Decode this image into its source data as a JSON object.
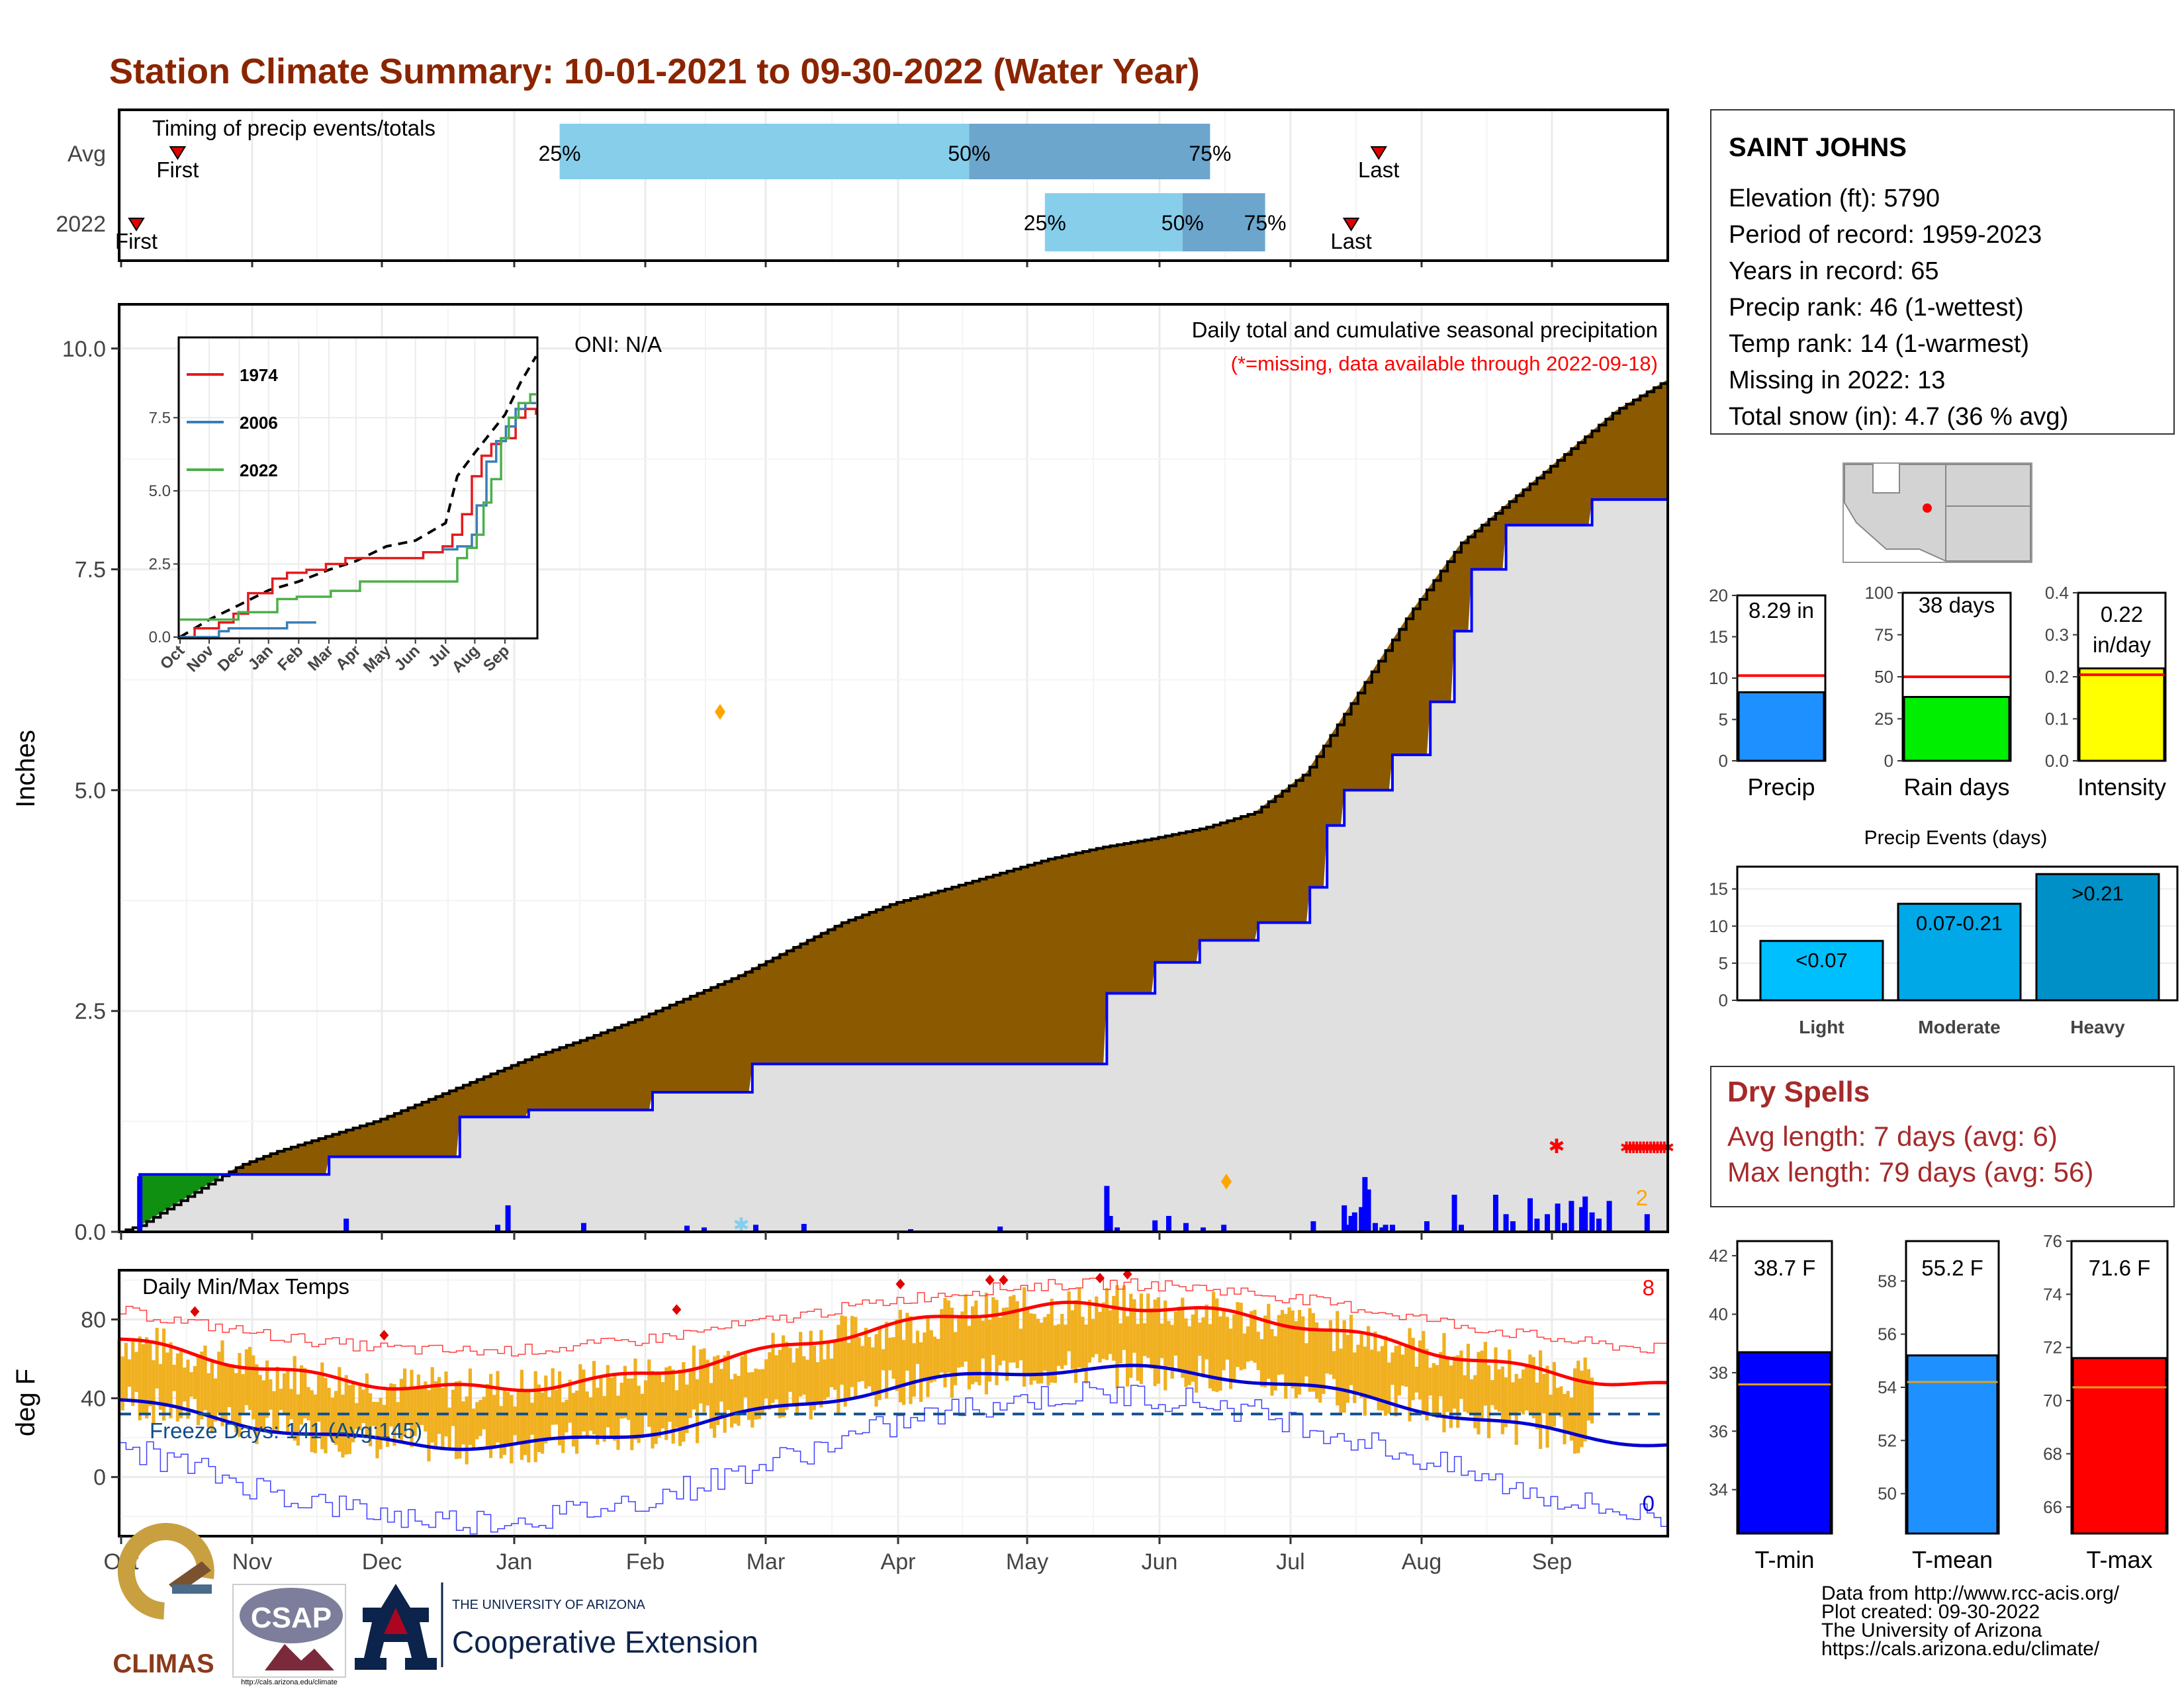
{
  "title": "Station Climate Summary: 10-01-2021 to 09-30-2022 (Water Year)",
  "months": [
    "Oct",
    "Nov",
    "Dec",
    "Jan",
    "Feb",
    "Mar",
    "Apr",
    "May",
    "Jun",
    "Jul",
    "Aug",
    "Sep"
  ],
  "timing": {
    "title": "Timing of precip events/totals",
    "rows": [
      "Avg",
      "2022"
    ],
    "avg": {
      "first": "First",
      "last": "Last",
      "first_day": 17,
      "last_day": 366,
      "p25_day": 128,
      "p50_day": 247,
      "p75_day": 317,
      "p25": "25%",
      "p50": "50%",
      "p75": "75%"
    },
    "y2022": {
      "first": "First",
      "last": "Last",
      "first_day": 5,
      "last_day": 358,
      "p25_day": 269,
      "p50_day": 309,
      "p75_day": 333,
      "p25": "25%",
      "p50": "50%",
      "p75": "75%"
    }
  },
  "precip": {
    "ylabel": "Inches",
    "yticks": [
      "0.0",
      "2.5",
      "5.0",
      "7.5",
      "10.0"
    ],
    "subtitle": "Daily total and cumulative seasonal precipitation",
    "missing_note": "(*=missing, data available through 2022-09-18)",
    "oni": "ONI: N/A",
    "missing_count": "2",
    "ylim": [
      0,
      10.5
    ],
    "cumulative_avg": [
      [
        0,
        0
      ],
      [
        6,
        0.07
      ],
      [
        20,
        0.4
      ],
      [
        35,
        0.75
      ],
      [
        45,
        0.9
      ],
      [
        60,
        1.08
      ],
      [
        75,
        1.26
      ],
      [
        90,
        1.5
      ],
      [
        105,
        1.74
      ],
      [
        120,
        1.98
      ],
      [
        135,
        2.18
      ],
      [
        150,
        2.4
      ],
      [
        165,
        2.65
      ],
      [
        180,
        2.9
      ],
      [
        195,
        3.2
      ],
      [
        210,
        3.5
      ],
      [
        225,
        3.72
      ],
      [
        240,
        3.88
      ],
      [
        255,
        4.05
      ],
      [
        270,
        4.22
      ],
      [
        285,
        4.35
      ],
      [
        300,
        4.45
      ],
      [
        315,
        4.57
      ],
      [
        330,
        4.75
      ],
      [
        345,
        5.2
      ],
      [
        350,
        5.5
      ],
      [
        360,
        6.1
      ],
      [
        375,
        7.0
      ],
      [
        390,
        7.8
      ],
      [
        405,
        8.3
      ],
      [
        420,
        8.8
      ],
      [
        435,
        9.3
      ],
      [
        450,
        9.65
      ]
    ],
    "cumulative_2022": [
      [
        0,
        0
      ],
      [
        6,
        0.65
      ],
      [
        60,
        0.65
      ],
      [
        61,
        0.85
      ],
      [
        98,
        0.85
      ],
      [
        99,
        1.3
      ],
      [
        118,
        1.3
      ],
      [
        119,
        1.38
      ],
      [
        154,
        1.38
      ],
      [
        155,
        1.58
      ],
      [
        183,
        1.58
      ],
      [
        184,
        1.9
      ],
      [
        286,
        1.9
      ],
      [
        287,
        2.7
      ],
      [
        300,
        2.7
      ],
      [
        301,
        3.05
      ],
      [
        313,
        3.05
      ],
      [
        314,
        3.3
      ],
      [
        330,
        3.3
      ],
      [
        331,
        3.5
      ],
      [
        345,
        3.5
      ],
      [
        346,
        3.9
      ],
      [
        350,
        3.9
      ],
      [
        351,
        4.6
      ],
      [
        355,
        4.6
      ],
      [
        356,
        5.0
      ],
      [
        369,
        5.0
      ],
      [
        370,
        5.4
      ],
      [
        380,
        5.4
      ],
      [
        381,
        6.0
      ],
      [
        387,
        6.0
      ],
      [
        388,
        6.8
      ],
      [
        392,
        6.8
      ],
      [
        393,
        7.5
      ],
      [
        402,
        7.5
      ],
      [
        403,
        8.0
      ],
      [
        427,
        8.0
      ],
      [
        428,
        8.29
      ],
      [
        450,
        8.29
      ]
    ],
    "daily_2022": [
      [
        6,
        0.63
      ],
      [
        66,
        0.15
      ],
      [
        110,
        0.08
      ],
      [
        113,
        0.3
      ],
      [
        135,
        0.1
      ],
      [
        165,
        0.07
      ],
      [
        170,
        0.05
      ],
      [
        185,
        0.08
      ],
      [
        199,
        0.09
      ],
      [
        230,
        0.03
      ],
      [
        256,
        0.06
      ],
      [
        287,
        0.52
      ],
      [
        288,
        0.18
      ],
      [
        290,
        0.05
      ],
      [
        301,
        0.13
      ],
      [
        305,
        0.18
      ],
      [
        310,
        0.1
      ],
      [
        315,
        0.05
      ],
      [
        321,
        0.08
      ],
      [
        347,
        0.12
      ],
      [
        356,
        0.3
      ],
      [
        357,
        0.08
      ],
      [
        358,
        0.18
      ],
      [
        359,
        0.22
      ],
      [
        361,
        0.28
      ],
      [
        362,
        0.62
      ],
      [
        363,
        0.48
      ],
      [
        365,
        0.1
      ],
      [
        367,
        0.05
      ],
      [
        368,
        0.08
      ],
      [
        370,
        0.08
      ],
      [
        380,
        0.12
      ],
      [
        388,
        0.42
      ],
      [
        390,
        0.08
      ],
      [
        400,
        0.42
      ],
      [
        403,
        0.2
      ],
      [
        405,
        0.12
      ],
      [
        410,
        0.38
      ],
      [
        412,
        0.15
      ],
      [
        415,
        0.2
      ],
      [
        418,
        0.32
      ],
      [
        420,
        0.1
      ],
      [
        422,
        0.35
      ],
      [
        425,
        0.28
      ],
      [
        426,
        0.4
      ],
      [
        428,
        0.22
      ],
      [
        430,
        0.15
      ],
      [
        433,
        0.35
      ],
      [
        444,
        0.2
      ]
    ]
  },
  "inset": {
    "series": [
      {
        "name": "1974",
        "color": "#e41a1c"
      },
      {
        "name": "2006",
        "color": "#377eb8"
      },
      {
        "name": "2022",
        "color": "#4daf4a"
      }
    ],
    "yticks": [
      "0.0",
      "2.5",
      "5.0",
      "7.5"
    ],
    "months": [
      "Oct",
      "Nov",
      "Dec",
      "Jan",
      "Feb",
      "Mar",
      "Apr",
      "May",
      "Jun",
      "Jul",
      "Aug",
      "Sep"
    ]
  },
  "station": {
    "name": "SAINT JOHNS",
    "lines": [
      "Elevation (ft): 5790",
      "Period of record: 1959-2023",
      "Years in record: 65",
      "Precip rank: 46 (1-wettest)",
      "Temp rank: 14 (1-warmest)",
      "Missing in 2022: 13",
      "Total snow (in): 4.7 (36 % avg)"
    ]
  },
  "mini_bars": [
    {
      "label": "Precip",
      "value_text": "8.29 in",
      "value": 8.29,
      "avg": 10.3,
      "ylim": [
        0,
        20
      ],
      "yticks": [
        "0",
        "5",
        "10",
        "15",
        "20"
      ],
      "color": "#1e90ff"
    },
    {
      "label": "Rain days",
      "value_text": "38 days",
      "value": 38,
      "avg": 50,
      "ylim": [
        0,
        100
      ],
      "yticks": [
        "0",
        "25",
        "50",
        "75",
        "100"
      ],
      "color": "#00ee00"
    },
    {
      "label": "Intensity",
      "value_text": "0.22",
      "value_text2": "in/day",
      "value": 0.22,
      "avg": 0.205,
      "ylim": [
        0,
        0.4
      ],
      "yticks": [
        "0.0",
        "0.1",
        "0.2",
        "0.3",
        "0.4"
      ],
      "color": "#ffff00"
    }
  ],
  "events": {
    "title": "Precip Events (days)",
    "categories": [
      "Light",
      "Moderate",
      "Heavy"
    ],
    "labels": [
      "<0.07",
      "0.07-0.21",
      ">0.21"
    ],
    "values": [
      8,
      13,
      17
    ],
    "ylim": [
      0,
      18
    ],
    "yticks": [
      "0",
      "5",
      "10",
      "15"
    ],
    "colors": [
      "#00bfff",
      "#00a8e8",
      "#0090c8"
    ]
  },
  "dry": {
    "title": "Dry Spells",
    "avg": "Avg length: 7 days (avg: 6)",
    "max": "Max length: 79 days (avg: 56)"
  },
  "temps": {
    "title": "Daily Min/Max Temps",
    "ylabel": "deg F",
    "yticks": [
      "0",
      "40",
      "80"
    ],
    "ylim": [
      -30,
      105
    ],
    "freeze": "Freeze Days: 141 (Avg:145)",
    "freeze_line": 32,
    "record_high_count": "8",
    "record_low_count": "0"
  },
  "temp_bars": [
    {
      "label": "T-min",
      "value_text": "38.7 F",
      "value": 38.7,
      "avg": 37.6,
      "ylim": [
        32.5,
        42.5
      ],
      "yticks": [
        "34",
        "36",
        "38",
        "40",
        "42"
      ],
      "color": "#0000ff"
    },
    {
      "label": "T-mean",
      "value_text": "55.2 F",
      "value": 55.2,
      "avg": 54.2,
      "ylim": [
        48.5,
        59.5
      ],
      "yticks": [
        "50",
        "52",
        "54",
        "56",
        "58"
      ],
      "color": "#1e90ff"
    },
    {
      "label": "T-max",
      "value_text": "71.6 F",
      "value": 71.6,
      "avg": 70.5,
      "ylim": [
        65,
        76
      ],
      "yticks": [
        "66",
        "68",
        "70",
        "72",
        "74",
        "76"
      ],
      "color": "#ff0000"
    }
  ],
  "footer": {
    "lines": [
      "Data from http://www.rcc-acis.org/",
      "Plot created: 09-30-2022",
      "The University of Arizona",
      "https://cals.arizona.edu/climate/"
    ],
    "climas": "CLIMAS",
    "csap": "CSAP",
    "csap_url": "http://cals.arizona.edu/climate",
    "ua_small": "THE UNIVERSITY OF ARIZONA",
    "ua_big": "Cooperative Extension"
  },
  "colors": {
    "title": "#8b2500",
    "brown": "#8b5a00",
    "fill": "#e0e0e0",
    "blue": "#0000ff",
    "dry": "#a52a2a",
    "orange": "#f0b020"
  }
}
